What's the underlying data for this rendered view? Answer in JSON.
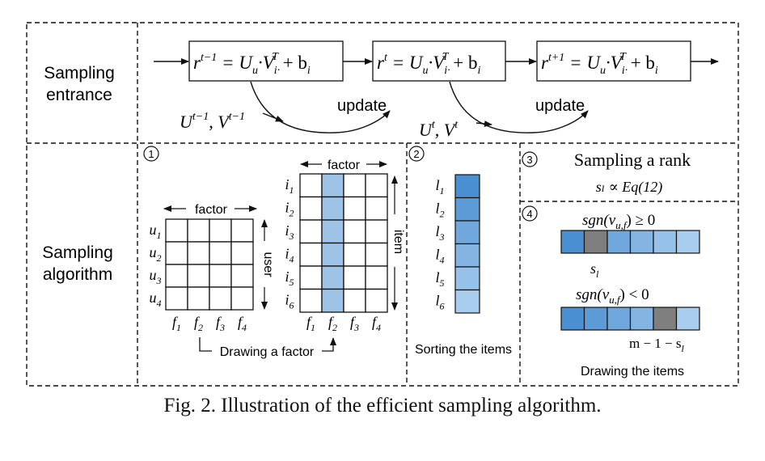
{
  "caption": "Fig. 2.  Illustration of the efficient sampling algorithm.",
  "rows": {
    "entrance": [
      "Sampling",
      "entrance"
    ],
    "algorithm": [
      "Sampling",
      "algorithm"
    ]
  },
  "entrance": {
    "formulas": [
      {
        "r": "r",
        "sup": "t−1",
        "rest": " = U",
        "u": "u",
        "v": "·V",
        "vsub": "i·",
        "vsup": "T",
        "tail": " + b",
        "bsub": "i"
      },
      {
        "r": "r",
        "sup": "t",
        "rest": " = U",
        "u": "u",
        "v": "·V",
        "vsub": "i·",
        "vsup": "T",
        "tail": " + b",
        "bsub": "i"
      },
      {
        "r": "r",
        "sup": "t+1",
        "rest": " = U",
        "u": "u",
        "v": "·V",
        "vsub": "i·",
        "vsup": "T",
        "tail": " + b",
        "bsub": "i"
      }
    ],
    "update_label": "update",
    "params": [
      {
        "u_sup": "t−1",
        "v_sup": "t−1"
      },
      {
        "u_sup": "t",
        "v_sup": "t"
      }
    ]
  },
  "step1": {
    "badge": "1",
    "factor_label": "factor",
    "user_label": "user",
    "item_label": "item",
    "users": [
      "u1",
      "u2",
      "u3",
      "u4"
    ],
    "items": [
      "i1",
      "i2",
      "i3",
      "i4",
      "i5",
      "i6"
    ],
    "factors": [
      "f1",
      "f2",
      "f3",
      "f4"
    ],
    "highlight_factor_index": 1,
    "drawing_label": "Drawing a factor"
  },
  "step2": {
    "badge": "2",
    "items": [
      "l1",
      "l2",
      "l3",
      "l4",
      "l5",
      "l6"
    ],
    "label": "Sorting the items"
  },
  "step3": {
    "badge": "3",
    "title": "Sampling a rank",
    "formula": "sₗ ∝ Eq(12)"
  },
  "step4": {
    "badge": "4",
    "cond1": "sgn(v",
    "cond_sub": "u,f",
    "cond1_tail": ") ≥ 0",
    "cond2_tail": ") < 0",
    "bar1_gray_index": 1,
    "bar2_gray_index": 4,
    "label1": "s",
    "label1_sub": "l",
    "label2": "m − 1 − s",
    "label2_sub": "l",
    "footer": "Drawing the items"
  },
  "colors": {
    "cell_dark": "#4a8fd1",
    "cell_light": "#9cc3e8",
    "gray": "#7f7f7f",
    "highlight": "#9dc3e6"
  }
}
